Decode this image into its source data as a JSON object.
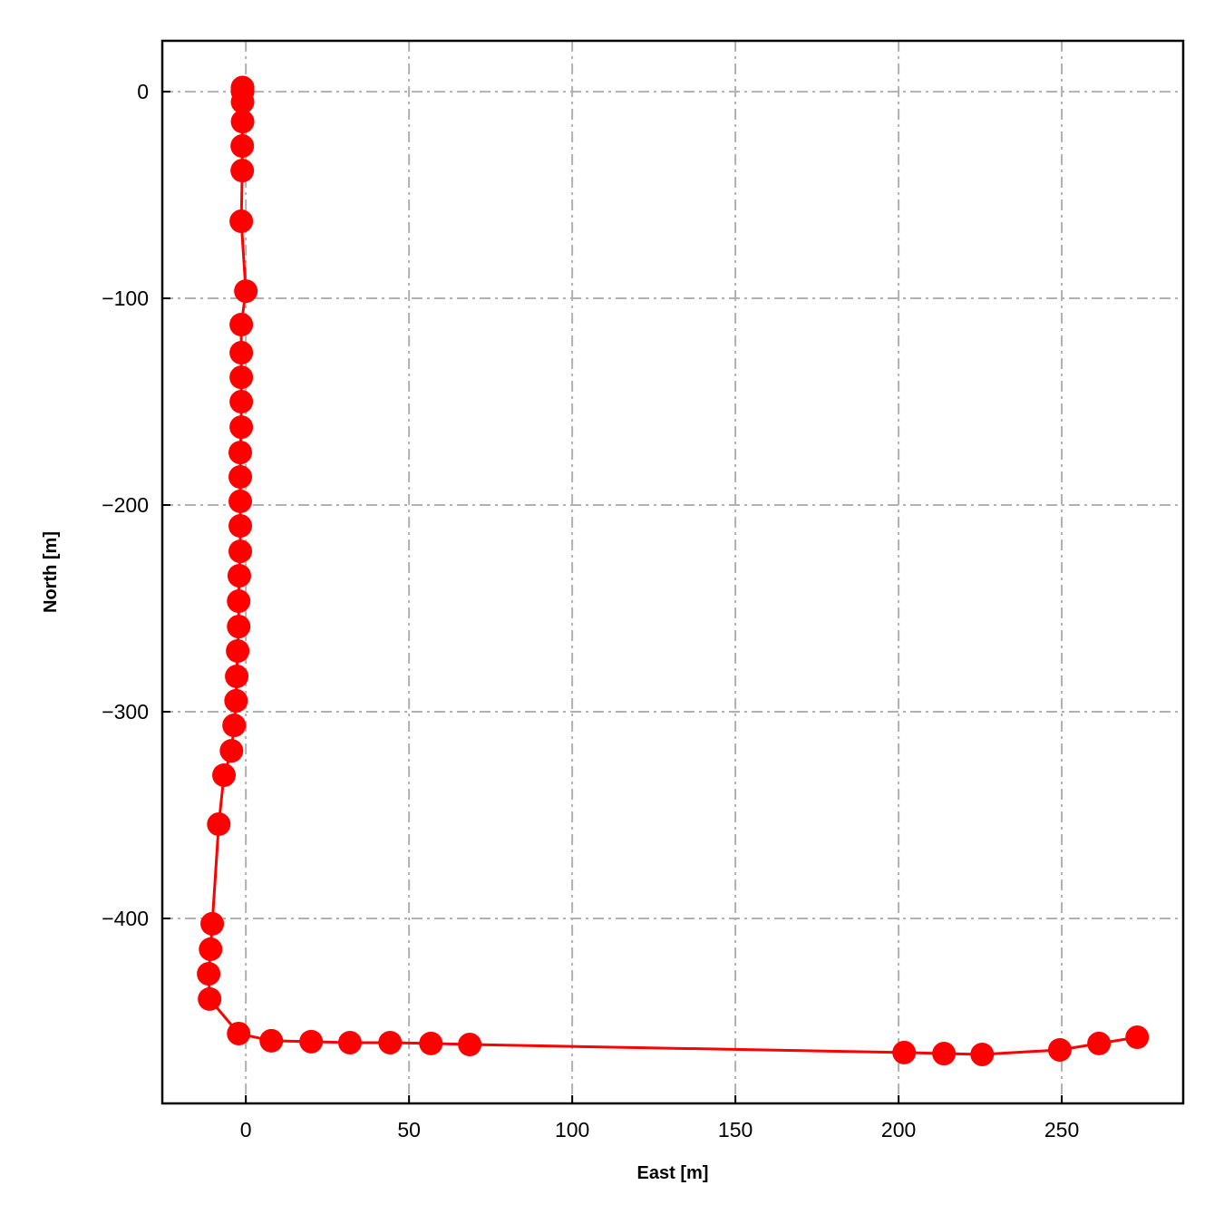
{
  "chart_data": {
    "type": "line",
    "xlabel": "East [m]",
    "ylabel": "North [m]",
    "xlim": [
      -25.6,
      287.2
    ],
    "ylim": [
      -489.5,
      24.6
    ],
    "xticks": [
      0,
      50,
      100,
      150,
      200,
      250
    ],
    "yticks": [
      0,
      -100,
      -200,
      -300,
      -400
    ],
    "xtick_labels": [
      "0",
      "50",
      "100",
      "150",
      "200",
      "250"
    ],
    "ytick_labels": [
      "0",
      "−100",
      "−200",
      "−300",
      "−400"
    ],
    "grid": true,
    "color": "#ff0000",
    "marker": "circle",
    "series": [
      {
        "x": [
          -1,
          -1,
          -1,
          -1,
          -1,
          -1.1,
          -1.1,
          -1.4,
          0,
          -1.4,
          -1.4,
          -1.4,
          -1.4,
          -1.4,
          -1.7,
          -1.7,
          -1.7,
          -1.7,
          -1.7,
          -2,
          -2.2,
          -2.2,
          -2.5,
          -2.8,
          -3,
          -3.6,
          -4.4,
          -6.7,
          -8.3,
          -10.3,
          -10.8,
          -11.4,
          -11.1,
          -2.2,
          7.8,
          20,
          31.9,
          44.2,
          56.7,
          68.6,
          201.7,
          213.9,
          225.6,
          249.4,
          261.4,
          273.1
        ],
        "y": [
          2,
          1,
          0,
          -5,
          -14.5,
          -26.3,
          -38.2,
          -62.7,
          -96.5,
          -112.7,
          -126.3,
          -138.2,
          -150,
          -162.3,
          -174.6,
          -186.4,
          -198.2,
          -210.1,
          -222.4,
          -234.2,
          -246.5,
          -258.8,
          -270.6,
          -282.9,
          -294.7,
          -306.6,
          -318.9,
          -330.7,
          -354.4,
          -402.6,
          -414.9,
          -426.8,
          -439,
          -455.7,
          -459.2,
          -459.6,
          -460.1,
          -460.1,
          -460.5,
          -461,
          -464.9,
          -465.4,
          -465.8,
          -463.6,
          -460.5,
          -457.5
        ]
      }
    ]
  }
}
